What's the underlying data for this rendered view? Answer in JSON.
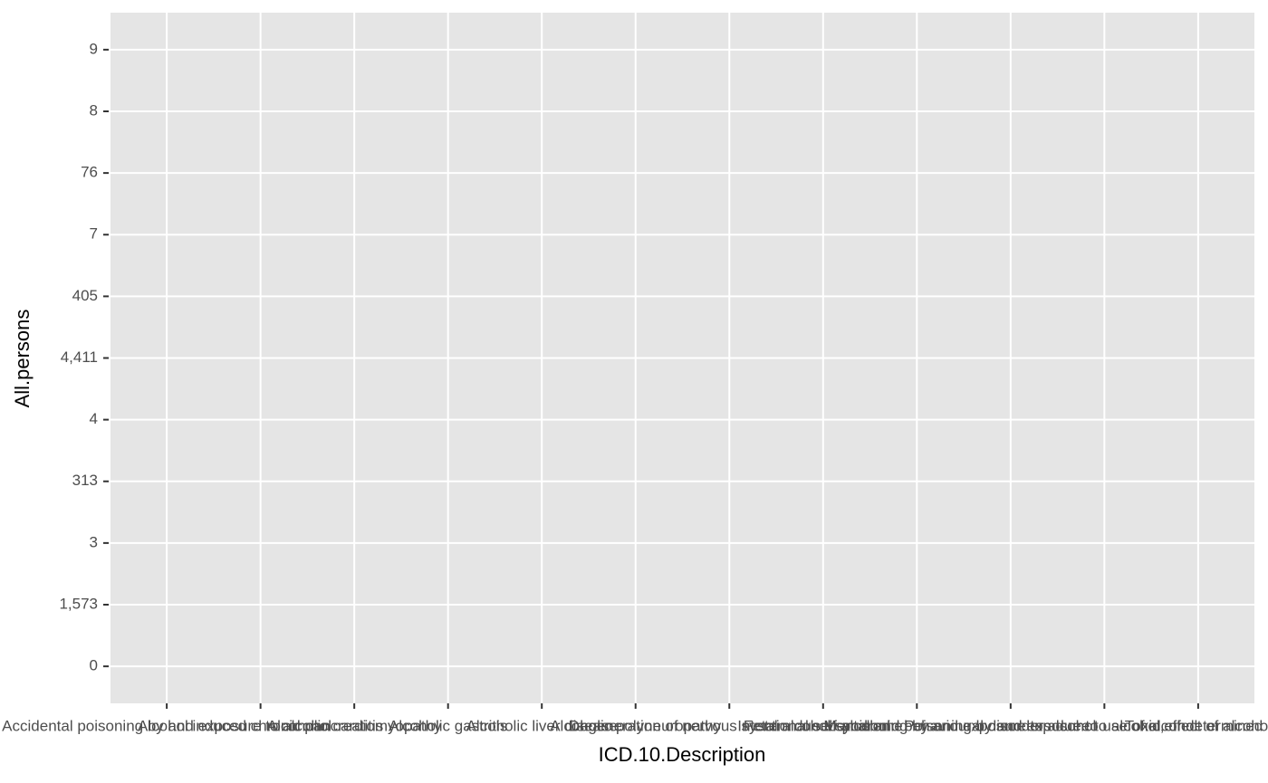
{
  "chart_data": {
    "type": "scatter",
    "x_label": "ICD.10.Description",
    "y_label": "All.persons",
    "x_categories": [
      "Accidental poisoning by and exposure to alcohol",
      "Alcohol induced chronic pancreatitis",
      "Alcoholic cardiomyopathy",
      "Alcoholic gastritis",
      "Alcoholic liver disease",
      "Alcoholic polyneuropathy",
      "Degeneration of nervous system due to alcohol",
      "Fetal alcohol syndrome",
      "Intentional self-poisoning by and exposure to alcohol",
      "Mental and behavioural disorders due to use of alcohol",
      "Poisoning by and exposure to alcohol, undetermined intent",
      "Toxic effect of alcohol"
    ],
    "y_categories": [
      "0",
      "1,573",
      "3",
      "313",
      "4",
      "4,411",
      "405",
      "7",
      "76",
      "8",
      "9"
    ],
    "grid": true,
    "panel_color": "#e5e5e5"
  }
}
